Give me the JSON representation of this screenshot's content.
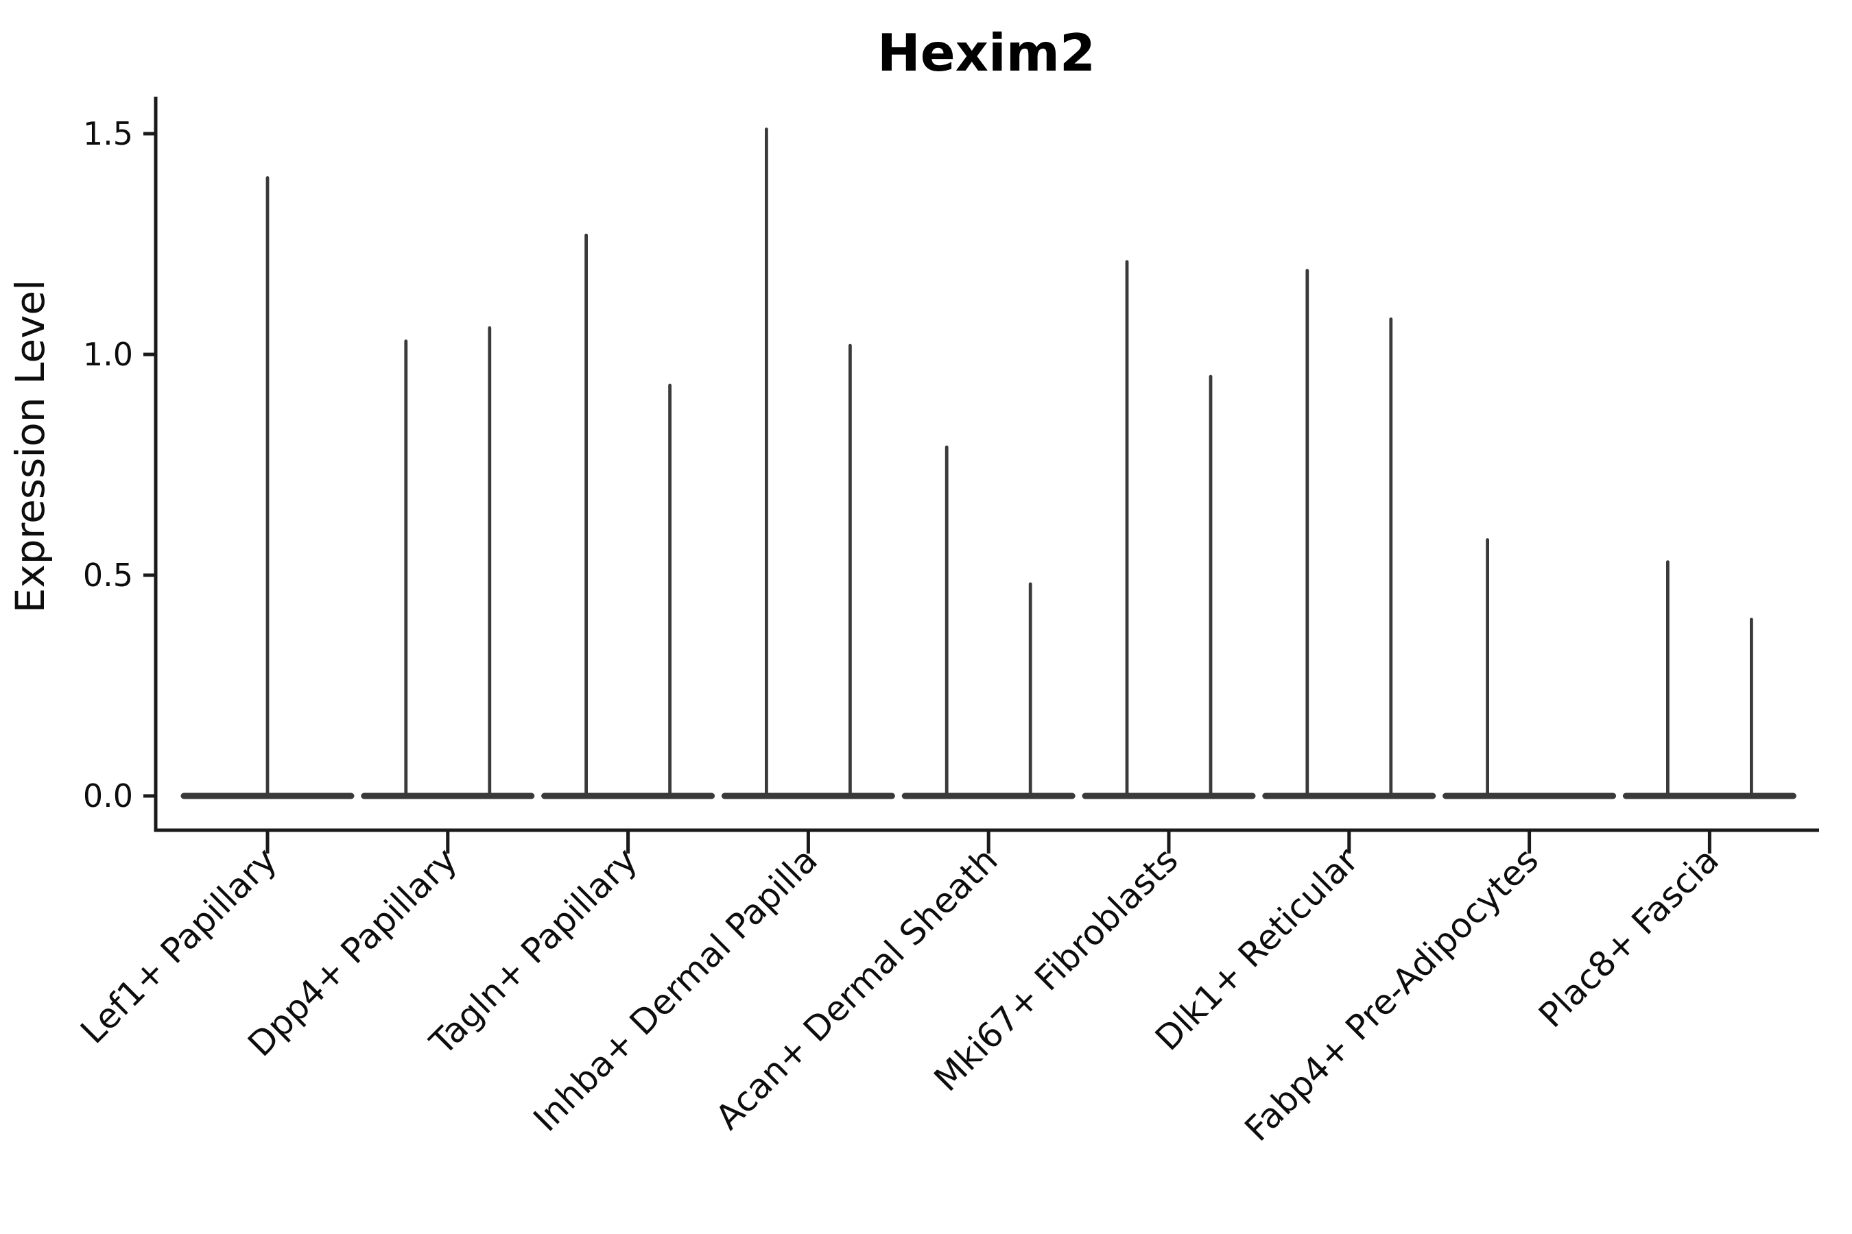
{
  "chart_data": {
    "type": "violin",
    "title": "Hexim2",
    "ylabel": "Expression Level",
    "xlabel": "",
    "ylim": [
      0,
      1.58
    ],
    "ytick_values": [
      0.0,
      0.5,
      1.0,
      1.5
    ],
    "ytick_labels": [
      "0.0",
      "0.5",
      "1.0",
      "1.5"
    ],
    "grid": false,
    "legend": "none",
    "x_tick_rotation_degrees": 45,
    "categories": [
      {
        "label": "Lef1+ Papillary",
        "violin_max_values": [
          1.4
        ]
      },
      {
        "label": "Dpp4+ Papillary",
        "violin_max_values": [
          1.03,
          1.06
        ]
      },
      {
        "label": "Tagln+ Papillary",
        "violin_max_values": [
          1.27,
          0.93
        ]
      },
      {
        "label": "Inhba+ Dermal Papilla",
        "violin_max_values": [
          1.51,
          1.02
        ]
      },
      {
        "label": "Acan+ Dermal Sheath",
        "violin_max_values": [
          0.79,
          0.48
        ]
      },
      {
        "label": "Mki67+ Fibroblasts",
        "violin_max_values": [
          1.21,
          0.95
        ]
      },
      {
        "label": "Dlk1+ Reticular",
        "violin_max_values": [
          1.19,
          1.08
        ]
      },
      {
        "label": "Fabp4+ Pre-Adipocytes",
        "violin_max_values": [
          0.58,
          0.0
        ]
      },
      {
        "label": "Plac8+ Fascia",
        "violin_max_values": [
          0.53,
          0.4
        ]
      }
    ],
    "style": {
      "violin_color": "#3a3a3a",
      "axis_color": "#1a1a1a",
      "text_color": "#0d0d0d",
      "background": "#ffffff"
    }
  }
}
